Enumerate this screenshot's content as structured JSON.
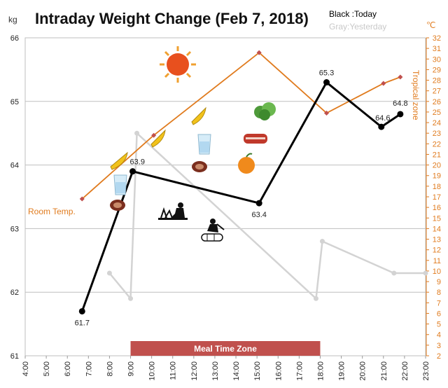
{
  "chart_data": {
    "type": "line",
    "title": "Intraday Weight Change (Feb 7, 2018)",
    "legend": {
      "today": "Black :Today",
      "yesterday": "Gray:Yesterday"
    },
    "left_axis": {
      "unit": "kg",
      "range": [
        61,
        66
      ],
      "ticks": [
        "61",
        "62",
        "63",
        "64",
        "65",
        "66"
      ]
    },
    "right_axis": {
      "unit": "℃",
      "range": [
        2,
        32
      ],
      "label": "Tropical zone"
    },
    "x_axis": {
      "ticks": [
        "4:00",
        "5:00",
        "6:00",
        "7:00",
        "8:00",
        "9:00",
        "10:00",
        "11:00",
        "12:00",
        "13:00",
        "14:00",
        "15:00",
        "16:00",
        "17:00",
        "18:00",
        "19:00",
        "20:00",
        "21:00",
        "22:00",
        "23:00"
      ],
      "range": [
        4,
        23
      ]
    },
    "series": [
      {
        "name": "Today",
        "color": "#000000",
        "points": [
          {
            "x": 6.7,
            "y": 61.7,
            "label": "61.7"
          },
          {
            "x": 9.1,
            "y": 63.9,
            "label": "63.9"
          },
          {
            "x": 15.1,
            "y": 63.4,
            "label": "63.4"
          },
          {
            "x": 18.3,
            "y": 65.3,
            "label": "65.3"
          },
          {
            "x": 20.9,
            "y": 64.6,
            "label": "64.6"
          },
          {
            "x": 21.8,
            "y": 64.8,
            "label": "64.8"
          }
        ]
      },
      {
        "name": "Yesterday",
        "color": "#D3D3D3",
        "points": [
          {
            "x": 8.0,
            "y": 62.3
          },
          {
            "x": 9.0,
            "y": 61.9
          },
          {
            "x": 9.3,
            "y": 64.5
          },
          {
            "x": 17.8,
            "y": 61.9
          },
          {
            "x": 18.1,
            "y": 62.8
          },
          {
            "x": 21.5,
            "y": 62.3
          },
          {
            "x": 23.0,
            "y": 62.3
          }
        ]
      },
      {
        "name": "Room Temp.",
        "color": "#E07B1E",
        "axis": "right",
        "points": [
          {
            "x": 6.7,
            "y": 16.8
          },
          {
            "x": 10.1,
            "y": 22.8
          },
          {
            "x": 15.1,
            "y": 30.6
          },
          {
            "x": 18.3,
            "y": 24.9
          },
          {
            "x": 21.0,
            "y": 27.7
          },
          {
            "x": 21.8,
            "y": 28.3
          }
        ]
      }
    ],
    "bands": [
      {
        "label": "Meal Time Zone",
        "from": 9.0,
        "to": 18.0,
        "color": "#C0504D"
      }
    ],
    "grid": true
  },
  "labels": {
    "room_temp": "Room Temp.",
    "meal_zone": "Meal Time Zone"
  },
  "icons": [
    "sun-icon",
    "banana-icon",
    "water-glass-icon",
    "meat-icon",
    "lettuce-icon",
    "orange-icon",
    "gardening-icon",
    "woodchopping-icon"
  ]
}
